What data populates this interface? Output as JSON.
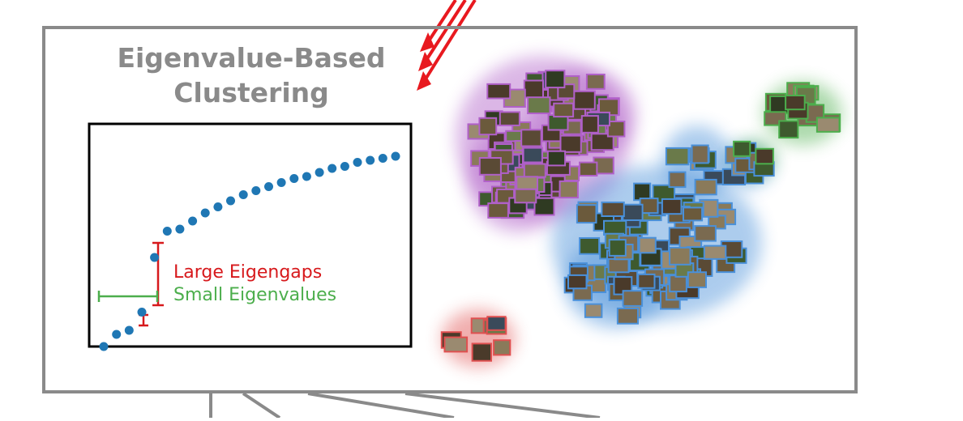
{
  "title": {
    "line1": "Eigenvalue-Based",
    "line2": "Clustering"
  },
  "annotations": {
    "large_eigengaps": "Large Eigengaps",
    "small_eigenvalues": "Small Eigenvalues"
  },
  "colors": {
    "frame": "#8a8a8a",
    "title": "#8a8a8a",
    "points": "#1f77b4",
    "eigengap_bar": "#d7191c",
    "small_eigen_bar": "#4cae4c",
    "arrows": "#e8191f",
    "cluster_purple": "#b060c8",
    "cluster_blue": "#4a90d9",
    "cluster_green": "#4cae4c",
    "cluster_red": "#e05050"
  },
  "chart_data": {
    "type": "scatter",
    "title": "",
    "xlabel": "",
    "ylabel": "",
    "x": [
      1,
      2,
      3,
      4,
      5,
      6,
      7,
      8,
      9,
      10,
      11,
      12,
      13,
      14,
      15,
      16,
      17,
      18,
      19,
      20,
      21,
      22,
      23,
      24
    ],
    "y": [
      0.0,
      0.06,
      0.08,
      0.17,
      0.44,
      0.57,
      0.58,
      0.62,
      0.66,
      0.69,
      0.72,
      0.75,
      0.77,
      0.79,
      0.81,
      0.83,
      0.84,
      0.86,
      0.88,
      0.89,
      0.91,
      0.92,
      0.93,
      0.94
    ],
    "xlim": [
      0,
      25
    ],
    "ylim": [
      0,
      1
    ],
    "grid": false
  },
  "embedding_clusters": [
    {
      "name": "purple",
      "tile_count": 120
    },
    {
      "name": "blue",
      "tile_count": 110
    },
    {
      "name": "green",
      "tile_count": 16
    },
    {
      "name": "red",
      "tile_count": 8
    }
  ]
}
